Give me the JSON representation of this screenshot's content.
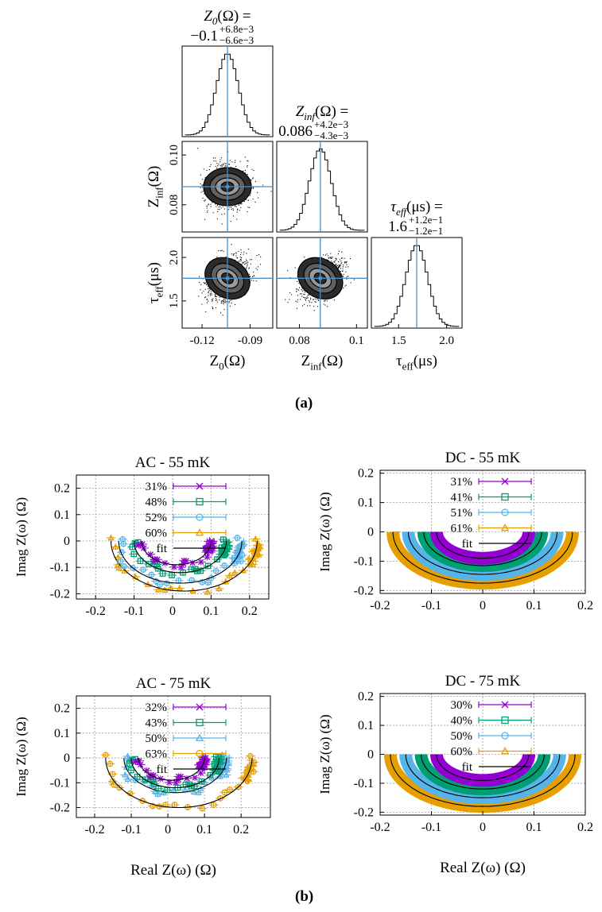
{
  "colors": {
    "purple": "#9400d3",
    "green": "#009e73",
    "blue": "#56b4e9",
    "orange": "#e69f00",
    "fit": "#000000",
    "marker_line": "#4a90c8",
    "grid": "#9a9a9a"
  },
  "captions": {
    "a": "(a)",
    "b": "(b)"
  },
  "corner": {
    "titles": [
      {
        "name": "Z0",
        "base": "Z",
        "sub": "0",
        "unit": "(Ω) =",
        "value": "−0.1",
        "plus": "+6.8e−3",
        "minus": "−6.6e−3"
      },
      {
        "name": "Zinf",
        "base": "Z",
        "sub": "inf",
        "unit": "(Ω) =",
        "value": "0.086",
        "plus": "+4.2e−3",
        "minus": "−4.3e−3"
      },
      {
        "name": "tau_eff",
        "base": "τ",
        "sub": "eff",
        "unit": "(μs) =",
        "value": "1.6",
        "plus": "+1.2e−1",
        "minus": "−1.2e−1"
      }
    ],
    "x_labels": [
      {
        "base": "Z",
        "sub": "0",
        "unit": "(Ω)"
      },
      {
        "base": "Z",
        "sub": "inf",
        "unit": "(Ω)"
      },
      {
        "base": "τ",
        "sub": "eff",
        "unit": "(μs)"
      }
    ],
    "y_labels": [
      {
        "base": "Z",
        "sub": "inf",
        "unit": "(Ω)"
      },
      {
        "base": "τ",
        "sub": "eff",
        "unit": "(μs)"
      }
    ],
    "x_ticks": [
      [
        "-0.12",
        "-0.09"
      ],
      [
        "0.08",
        "0.1"
      ],
      [
        "1.5",
        "2.0"
      ]
    ],
    "y_ticks": [
      [
        "0.10",
        "0.08"
      ],
      [
        "2.0",
        "1.5"
      ]
    ]
  },
  "chart_data": [
    {
      "type": "histogram",
      "panel": "Z0 marginal",
      "x_range": [
        -0.13,
        -0.07
      ],
      "median": -0.1
    },
    {
      "type": "heatmap",
      "panel": "Zinf vs Z0",
      "x": "Z0 (Ω)",
      "y": "Zinf (Ω)",
      "xlim": [
        -0.13,
        -0.07
      ],
      "ylim": [
        0.07,
        0.105
      ],
      "center": [
        -0.1,
        0.086
      ]
    },
    {
      "type": "histogram",
      "panel": "Zinf marginal",
      "x_range": [
        0.07,
        0.105
      ],
      "median": 0.086
    },
    {
      "type": "heatmap",
      "panel": "tau_eff vs Z0",
      "x": "Z0 (Ω)",
      "y": "tau_eff (μs)",
      "xlim": [
        -0.13,
        -0.07
      ],
      "ylim": [
        1.2,
        2.2
      ],
      "center": [
        -0.1,
        1.6
      ]
    },
    {
      "type": "heatmap",
      "panel": "tau_eff vs Zinf",
      "x": "Zinf (Ω)",
      "y": "tau_eff (μs)",
      "xlim": [
        0.07,
        0.105
      ],
      "ylim": [
        1.2,
        2.2
      ],
      "center": [
        0.086,
        1.6
      ]
    },
    {
      "type": "histogram",
      "panel": "tau_eff marginal",
      "x_range": [
        1.2,
        2.2
      ],
      "median": 1.6
    },
    {
      "type": "scatter",
      "title": "AC - 55 mK",
      "xlabel": "",
      "ylabel": "Imag Z(ω) (Ω)",
      "xlim": [
        -0.25,
        0.25
      ],
      "ylim": [
        -0.22,
        0.25
      ],
      "xticks": [
        "-0.2",
        "-0.1",
        "0",
        "0.1",
        "0.2"
      ],
      "yticks": [
        "0.2",
        "0.1",
        "0",
        "-0.1",
        "-0.2"
      ],
      "series": [
        {
          "name": "31%",
          "color": "purple",
          "marker": "x",
          "center": 0.01,
          "radius": 0.09
        },
        {
          "name": "48%",
          "color": "green",
          "marker": "square",
          "center": 0.02,
          "radius": 0.12
        },
        {
          "name": "52%",
          "color": "blue",
          "marker": "circle",
          "center": 0.02,
          "radius": 0.16
        },
        {
          "name": "60%",
          "color": "orange",
          "marker": "triangle",
          "center": 0.03,
          "radius": 0.19
        },
        {
          "name": "fit",
          "color": "fit",
          "marker": "line"
        }
      ]
    },
    {
      "type": "scatter",
      "title": "DC - 55 mK",
      "xlabel": "",
      "ylabel": "Imag Z(ω) (Ω)",
      "xlim": [
        -0.2,
        0.2
      ],
      "ylim": [
        -0.21,
        0.21
      ],
      "xticks": [
        "-0.2",
        "-0.1",
        "0",
        "0.1",
        "0.2"
      ],
      "yticks": [
        "0.2",
        "0.1",
        "0",
        "-0.1",
        "-0.2"
      ],
      "series": [
        {
          "name": "31%",
          "color": "purple",
          "marker": "x",
          "center": 0.0,
          "radius": 0.09
        },
        {
          "name": "41%",
          "color": "green",
          "marker": "square",
          "center": 0.0,
          "radius": 0.115
        },
        {
          "name": "51%",
          "color": "blue",
          "marker": "circle",
          "center": 0.0,
          "radius": 0.145
        },
        {
          "name": "61%",
          "color": "orange",
          "marker": "triangle",
          "center": 0.0,
          "radius": 0.175
        },
        {
          "name": "fit",
          "color": "fit",
          "marker": "line"
        }
      ]
    },
    {
      "type": "scatter",
      "title": "AC - 75 mK",
      "xlabel": "Real Z(ω) (Ω)",
      "ylabel": "Imag Z(ω) (Ω)",
      "xlim": [
        -0.25,
        0.28
      ],
      "ylim": [
        -0.24,
        0.25
      ],
      "xticks": [
        "-0.2",
        "-0.1",
        "0",
        "0.1",
        "0.2"
      ],
      "yticks": [
        "0.2",
        "0.1",
        "0",
        "-0.1",
        "-0.2"
      ],
      "series": [
        {
          "name": "32%",
          "color": "purple",
          "marker": "x",
          "center": 0.01,
          "radius": 0.09
        },
        {
          "name": "43%",
          "color": "green",
          "marker": "square",
          "center": 0.02,
          "radius": 0.12
        },
        {
          "name": "50%",
          "color": "blue",
          "marker": "triangle",
          "center": 0.02,
          "radius": 0.14
        },
        {
          "name": "63%",
          "color": "orange",
          "marker": "circle",
          "center": 0.03,
          "radius": 0.2
        },
        {
          "name": "fit",
          "color": "fit",
          "marker": "line"
        }
      ]
    },
    {
      "type": "scatter",
      "title": "DC - 75 mK",
      "xlabel": "Real Z(ω) (Ω)",
      "ylabel": "Imag Z(ω) (Ω)",
      "xlim": [
        -0.2,
        0.2
      ],
      "ylim": [
        -0.21,
        0.21
      ],
      "xticks": [
        "-0.2",
        "-0.1",
        "0",
        "0.1",
        "0.2"
      ],
      "yticks": [
        "0.2",
        "0.1",
        "0",
        "-0.1",
        "-0.2"
      ],
      "series": [
        {
          "name": "30%",
          "color": "purple",
          "marker": "x",
          "center": 0.0,
          "radius": 0.09
        },
        {
          "name": "40%",
          "color": "green",
          "marker": "square",
          "center": 0.0,
          "radius": 0.12
        },
        {
          "name": "50%",
          "color": "blue",
          "marker": "circle",
          "center": 0.0,
          "radius": 0.15
        },
        {
          "name": "60%",
          "color": "orange",
          "marker": "triangle",
          "center": 0.0,
          "radius": 0.18
        },
        {
          "name": "fit",
          "color": "fit",
          "marker": "line"
        }
      ]
    }
  ]
}
